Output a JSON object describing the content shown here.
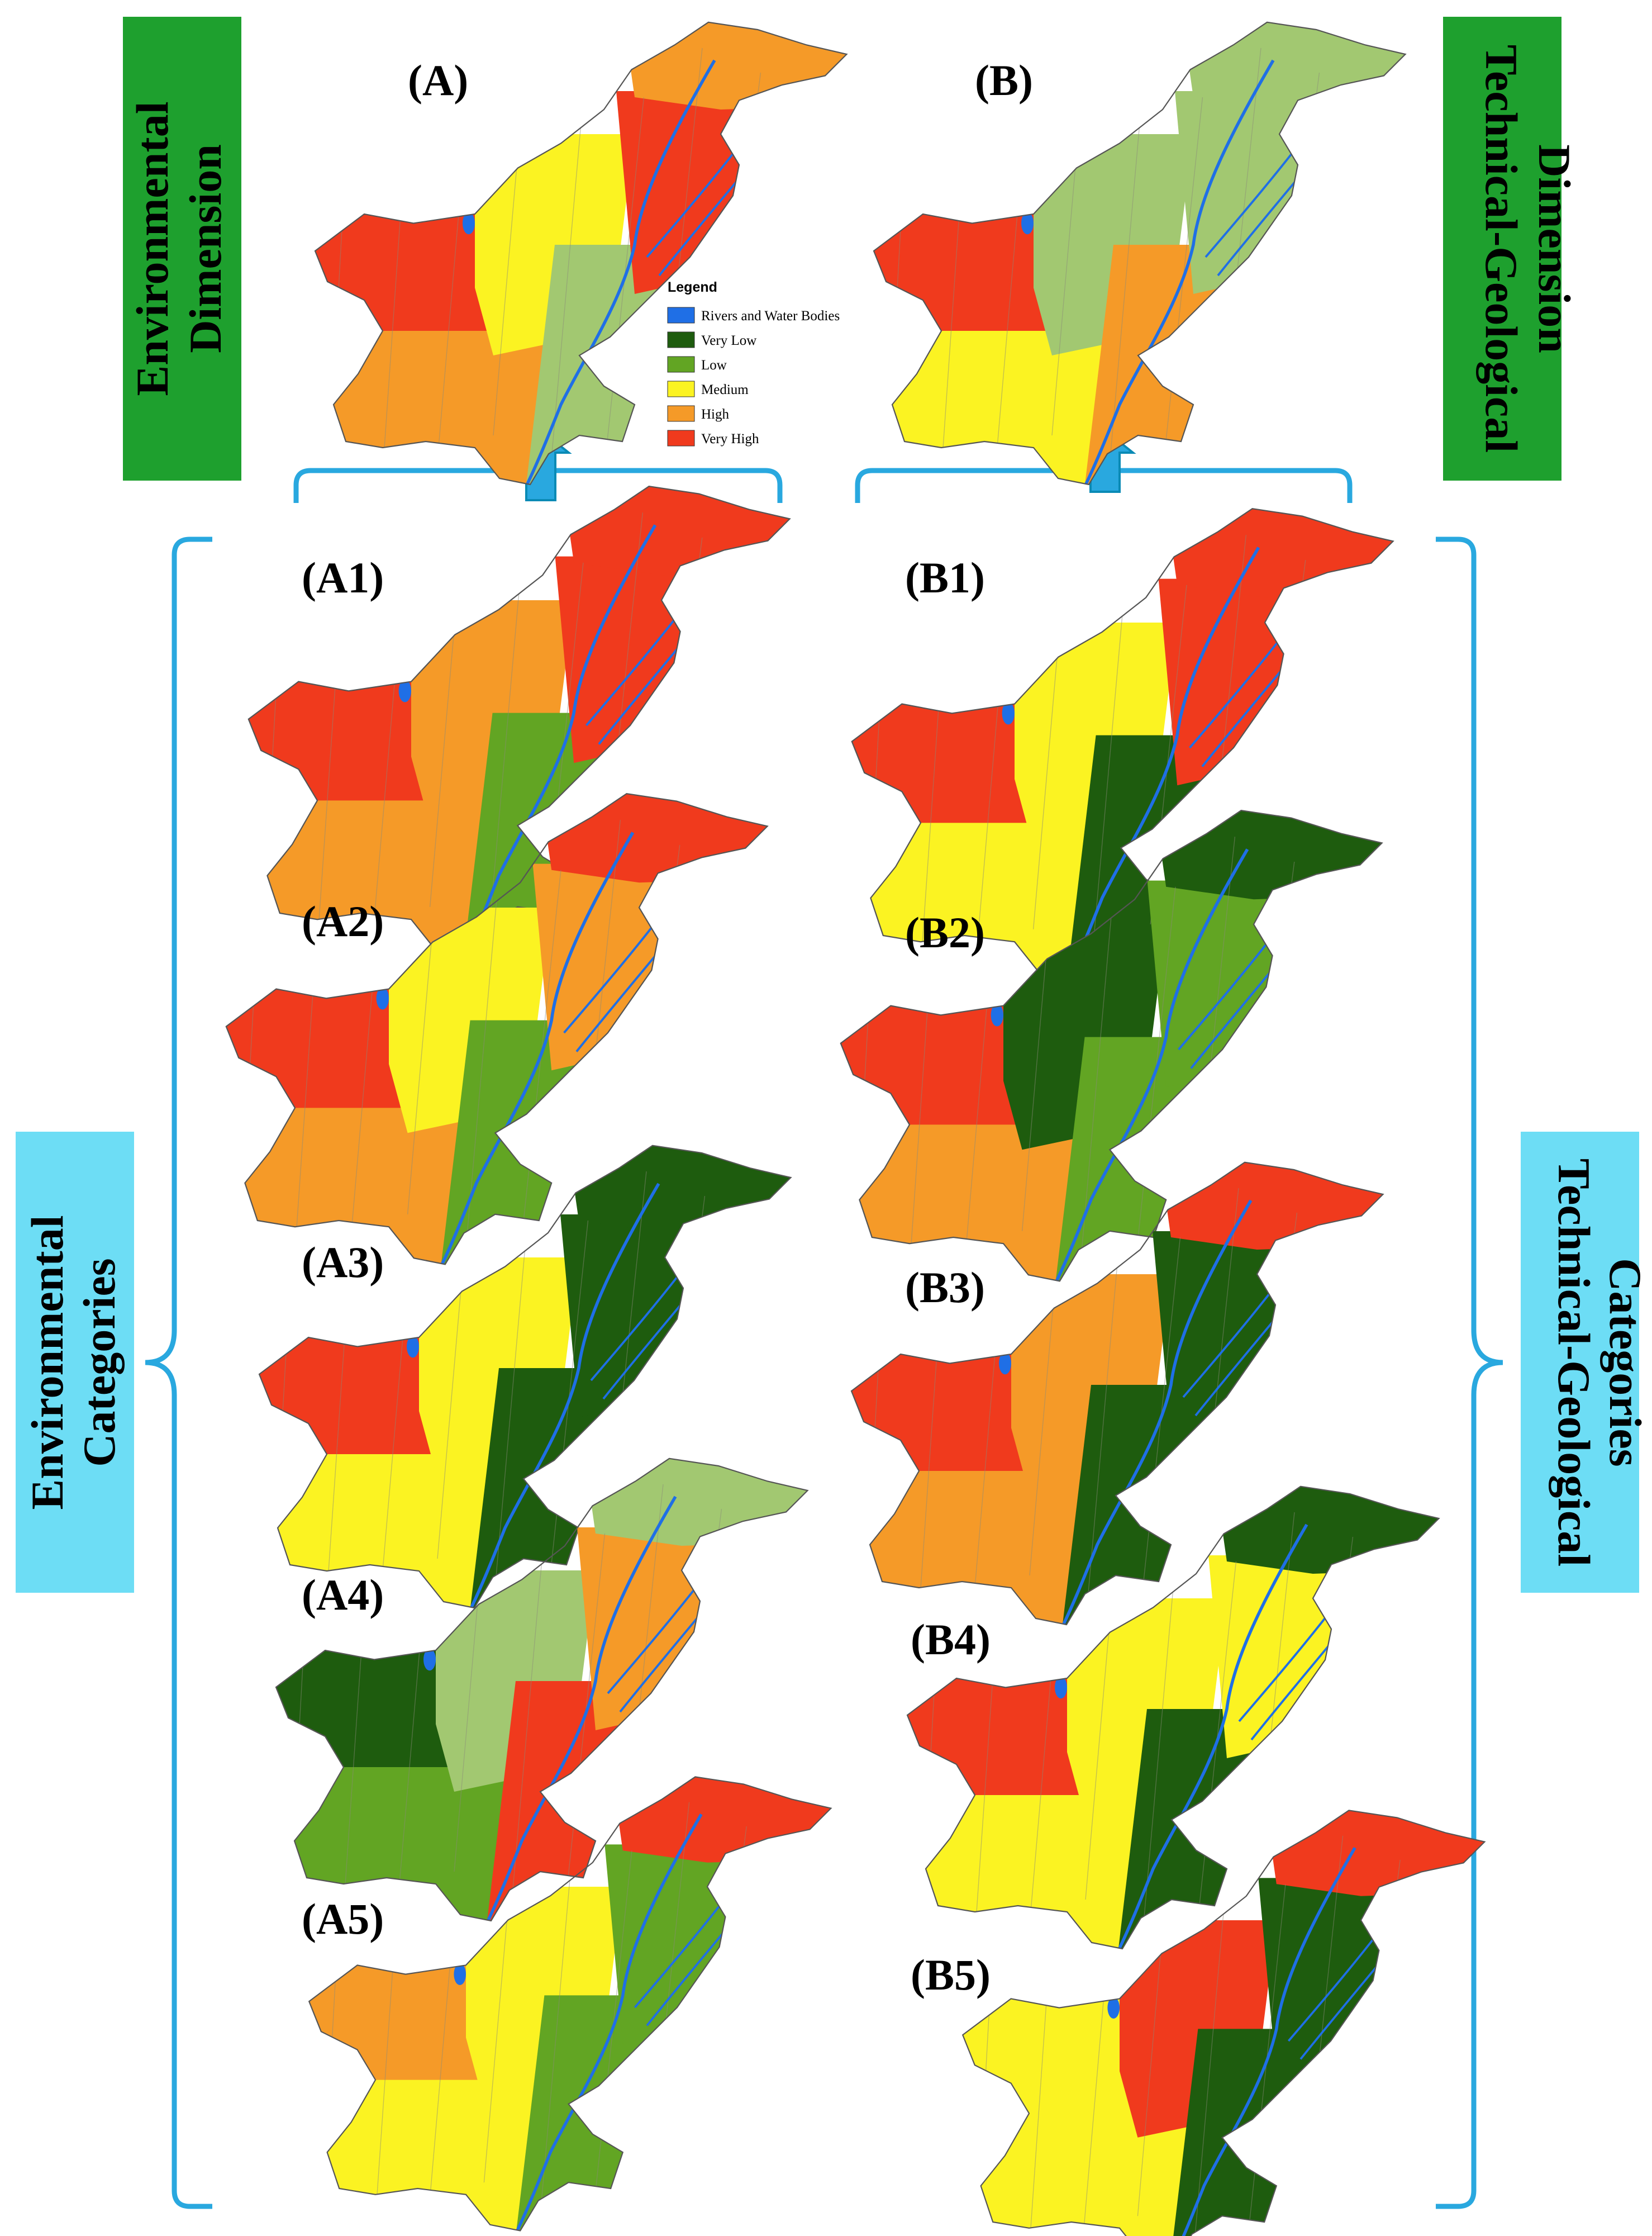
{
  "colors": {
    "water": "#1f6fe6",
    "very_low": "#1e5c0e",
    "low": "#62a523",
    "low_light": "#a2c871",
    "medium": "#fbf322",
    "high": "#f59a28",
    "very_high": "#f03a1d",
    "bracket": "#29a8df",
    "dim_box": "#1ea02e",
    "cat_box": "#6dddf5"
  },
  "top_boxes": {
    "environmental": {
      "line1": "Environmental",
      "line2": "Dimension"
    },
    "technical": {
      "line1": "Technical-Geological",
      "line2": "Dimension"
    }
  },
  "side_boxes": {
    "environmental": {
      "line1": "Environmental",
      "line2": "Categories"
    },
    "technical": {
      "line1": "Technical-Geological",
      "line2": "Categories"
    }
  },
  "legend": {
    "title": "Legend",
    "items": [
      {
        "label": "Rivers and Water Bodies",
        "color": "#1f6fe6"
      },
      {
        "label": "Very Low",
        "color": "#1e5c0e"
      },
      {
        "label": "Low",
        "color": "#62a523"
      },
      {
        "label": "Medium",
        "color": "#fbf322"
      },
      {
        "label": "High",
        "color": "#f59a28"
      },
      {
        "label": "Very High",
        "color": "#f03a1d"
      }
    ]
  },
  "maps": [
    {
      "label": "(A)",
      "scheme": [
        "very_high",
        "high",
        "medium",
        "low_light",
        "very_high",
        "high"
      ]
    },
    {
      "label": "(B)",
      "scheme": [
        "very_high",
        "medium",
        "low_light",
        "high",
        "low_light",
        "low_light"
      ]
    },
    {
      "label": "(A1)",
      "scheme": [
        "very_high",
        "high",
        "high",
        "low",
        "very_high",
        "very_high"
      ]
    },
    {
      "label": "(B1)",
      "scheme": [
        "very_high",
        "medium",
        "medium",
        "very_low",
        "very_high",
        "very_high"
      ]
    },
    {
      "label": "(A2)",
      "scheme": [
        "very_high",
        "high",
        "medium",
        "low",
        "high",
        "very_high"
      ]
    },
    {
      "label": "(B2)",
      "scheme": [
        "very_high",
        "high",
        "very_low",
        "low",
        "low",
        "very_low"
      ]
    },
    {
      "label": "(A3)",
      "scheme": [
        "very_high",
        "medium",
        "medium",
        "very_low",
        "very_low",
        "very_low"
      ]
    },
    {
      "label": "(B3)",
      "scheme": [
        "very_high",
        "high",
        "high",
        "very_low",
        "very_low",
        "very_high"
      ]
    },
    {
      "label": "(A4)",
      "scheme": [
        "very_low",
        "low",
        "low_light",
        "very_high",
        "high",
        "low_light"
      ]
    },
    {
      "label": "(B4)",
      "scheme": [
        "very_high",
        "medium",
        "medium",
        "very_low",
        "medium",
        "very_low"
      ]
    },
    {
      "label": "(A5)",
      "scheme": [
        "high",
        "medium",
        "medium",
        "low",
        "low",
        "very_high"
      ]
    },
    {
      "label": "(B5)",
      "scheme": [
        "medium",
        "medium",
        "very_high",
        "very_low",
        "very_low",
        "very_high"
      ]
    }
  ]
}
